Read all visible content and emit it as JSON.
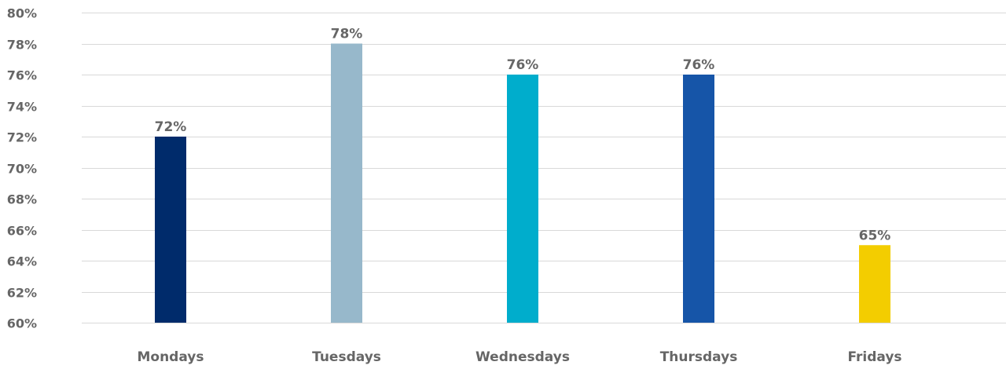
{
  "chart_data": {
    "type": "bar",
    "categories": [
      "Mondays",
      "Tuesdays",
      "Wednesdays",
      "Thursdays",
      "Fridays"
    ],
    "values": [
      72,
      78,
      76,
      76,
      65
    ],
    "data_labels": [
      "72%",
      "78%",
      "76%",
      "76%",
      "65%"
    ],
    "bar_colors": [
      "#002b6b",
      "#97b8cb",
      "#00adcc",
      "#1655a8",
      "#f3cd00"
    ],
    "title": "",
    "xlabel": "",
    "ylabel": "",
    "ylim": [
      60,
      80
    ],
    "yticks": [
      60,
      62,
      64,
      66,
      68,
      70,
      72,
      74,
      76,
      78,
      80
    ],
    "ytick_labels": [
      "60%",
      "62%",
      "64%",
      "66%",
      "68%",
      "70%",
      "72%",
      "74%",
      "76%",
      "78%",
      "80%"
    ],
    "grid": true,
    "legend": "none"
  }
}
